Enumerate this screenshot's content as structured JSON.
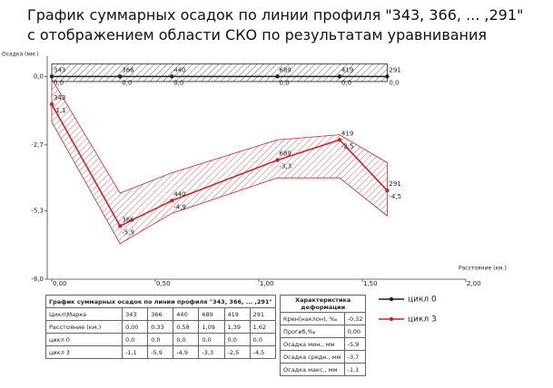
{
  "chart_data": {
    "type": "line",
    "title": [
      "График суммарных осадок по линии профиля \"343, 366, ... ,291\"",
      "с отображением области СКО по результатам уравнивания"
    ],
    "y_label": "Осадка (мм.)",
    "x_label": "Расстояние (км.)",
    "x": [
      0.0,
      0.33,
      0.58,
      1.09,
      1.39,
      1.62
    ],
    "point_labels": [
      "343",
      "366",
      "440",
      "689",
      "419",
      "291"
    ],
    "xlim": [
      0,
      2
    ],
    "xticks": [
      {
        "value": 0,
        "label": "0,00"
      },
      {
        "value": 0.5,
        "label": "0,50"
      },
      {
        "value": 1,
        "label": "1,00"
      },
      {
        "value": 1.5,
        "label": "1,50"
      },
      {
        "value": 2,
        "label": "2,00"
      }
    ],
    "ylim": [
      -8.0,
      0.8
    ],
    "yticks": [
      {
        "value": 0,
        "label": "0,0"
      },
      {
        "value": -2.7,
        "label": "-2,7"
      },
      {
        "value": -5.3,
        "label": "-5,3"
      },
      {
        "value": -8.0,
        "label": "-8,0"
      }
    ],
    "series": [
      {
        "name": "цикл 0",
        "color": "#222222",
        "values": [
          0,
          0,
          0,
          0,
          0,
          0
        ],
        "value_labels": [
          "0,0",
          "0,0",
          "0,0",
          "0,0",
          "0,0",
          "0,0"
        ],
        "band_upper": [
          0.5,
          0.5,
          0.5,
          0.5,
          0.5,
          0.5
        ],
        "band_lower": [
          -0.2,
          -0.2,
          -0.2,
          -0.2,
          -0.2,
          -0.2
        ]
      },
      {
        "name": "цикл 3",
        "color": "#c0282d",
        "values": [
          -1.1,
          -5.9,
          -4.9,
          -3.3,
          -2.5,
          -4.5
        ],
        "value_labels": [
          "-1,1",
          "-5,9",
          "-4,9",
          "-3,3",
          "-2,5",
          "-4,5"
        ],
        "band_upper": [
          -0.1,
          -4.6,
          -3.8,
          -2.5,
          -2.3,
          -3.4
        ],
        "band_lower": [
          -1.8,
          -6.6,
          -5.4,
          -4.0,
          -4.0,
          -5.5
        ]
      }
    ]
  },
  "tables": {
    "profile": {
      "title": "График суммарных осадок по линии профиля \"343, 366, ... ,291\"",
      "rows": [
        [
          "Цикл\\Марка",
          "343",
          "366",
          "440",
          "689",
          "419",
          "291"
        ],
        [
          "Расстояние (км.)",
          "0,00",
          "0,33",
          "0,58",
          "1,09",
          "1,39",
          "1,62"
        ],
        [
          "цикл 0",
          "0,0",
          "0,0",
          "0,0",
          "0,0",
          "0,0",
          "0,0"
        ],
        [
          "цикл 3",
          "-1,1",
          "-5,9",
          "-4,9",
          "-3,3",
          "-2,5",
          "-4,5"
        ]
      ]
    },
    "deformation": {
      "title": "Характеристика деформации",
      "rows": [
        [
          "Крен(наклон), ‰",
          "-0,32"
        ],
        [
          "Прогиб,‰",
          "0,00"
        ],
        [
          "Осадка мин., мм",
          "-5,9"
        ],
        [
          "Осадка средн., мм",
          "-3,7"
        ],
        [
          "Осадка макс., мм",
          "-1,1"
        ]
      ]
    }
  }
}
